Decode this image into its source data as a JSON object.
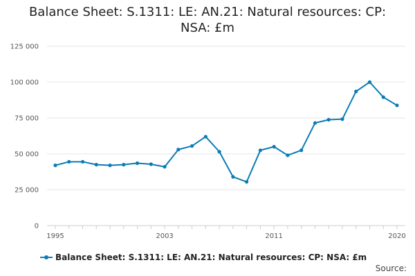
{
  "chart_data": {
    "type": "line",
    "title": "Balance Sheet: S.1311: LE: AN.21: Natural resources: CP: NSA: £m",
    "xlabel": "",
    "ylabel": "",
    "x": [
      1995,
      1996,
      1997,
      1998,
      1999,
      2000,
      2001,
      2002,
      2003,
      2004,
      2005,
      2006,
      2007,
      2008,
      2009,
      2010,
      2011,
      2012,
      2013,
      2014,
      2015,
      2016,
      2017,
      2018,
      2019,
      2020
    ],
    "series": [
      {
        "name": "Balance Sheet: S.1311: LE: AN.21: Natural resources: CP: NSA: £m",
        "values": [
          42000,
          44500,
          44500,
          42500,
          42000,
          42500,
          43500,
          42800,
          41000,
          53000,
          55500,
          62000,
          51500,
          34000,
          30500,
          52500,
          55000,
          49000,
          52500,
          71500,
          73800,
          74200,
          93500,
          100000,
          89500,
          83800
        ]
      }
    ],
    "xlim": [
      1995,
      2020
    ],
    "ylim": [
      0,
      125000
    ],
    "x_ticks": [
      "1995",
      "2003",
      "2011",
      "2020"
    ],
    "y_ticks": [
      "0",
      "25 000",
      "50 000",
      "75 000",
      "100 000",
      "125 000"
    ],
    "grid": "horizontal",
    "legend_position": "bottom",
    "color": "#0a7bb6"
  },
  "source_label": "Source:"
}
